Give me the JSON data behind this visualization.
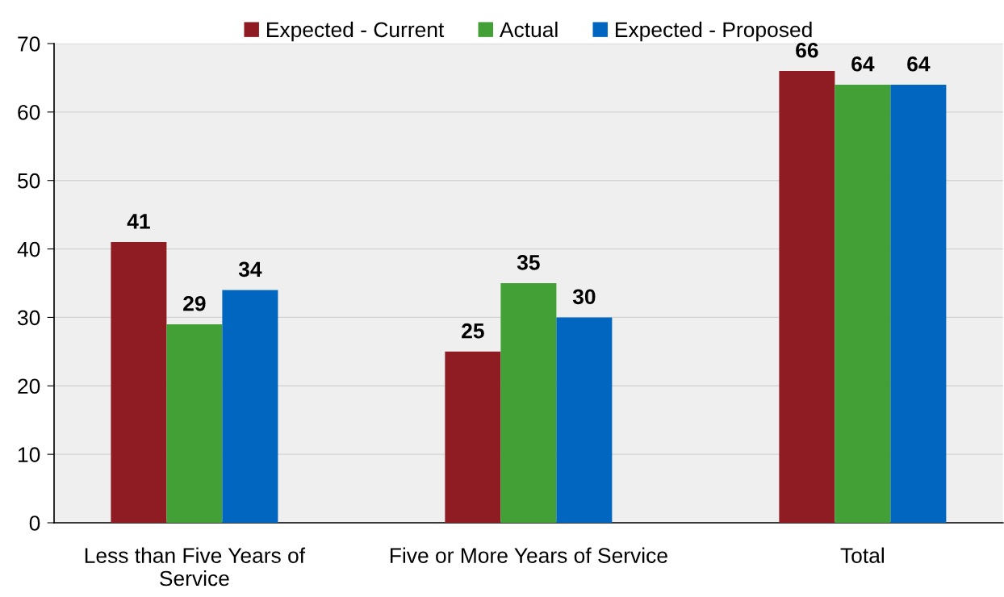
{
  "chart_data": {
    "type": "bar",
    "categories": [
      "Less than Five Years of\nService",
      "Five or More Years of Service",
      "Total"
    ],
    "series": [
      {
        "name": "Expected - Current",
        "color": "#8f1c22",
        "values": [
          41,
          25,
          66
        ]
      },
      {
        "name": "Actual",
        "color": "#43a037",
        "values": [
          29,
          35,
          64
        ]
      },
      {
        "name": "Expected - Proposed",
        "color": "#0066c0",
        "values": [
          34,
          30,
          64
        ]
      }
    ],
    "ylim": [
      0,
      70
    ],
    "yticks": [
      0,
      10,
      20,
      30,
      40,
      50,
      60,
      70
    ],
    "grid": "y",
    "legend": "top",
    "data_labels": true
  }
}
